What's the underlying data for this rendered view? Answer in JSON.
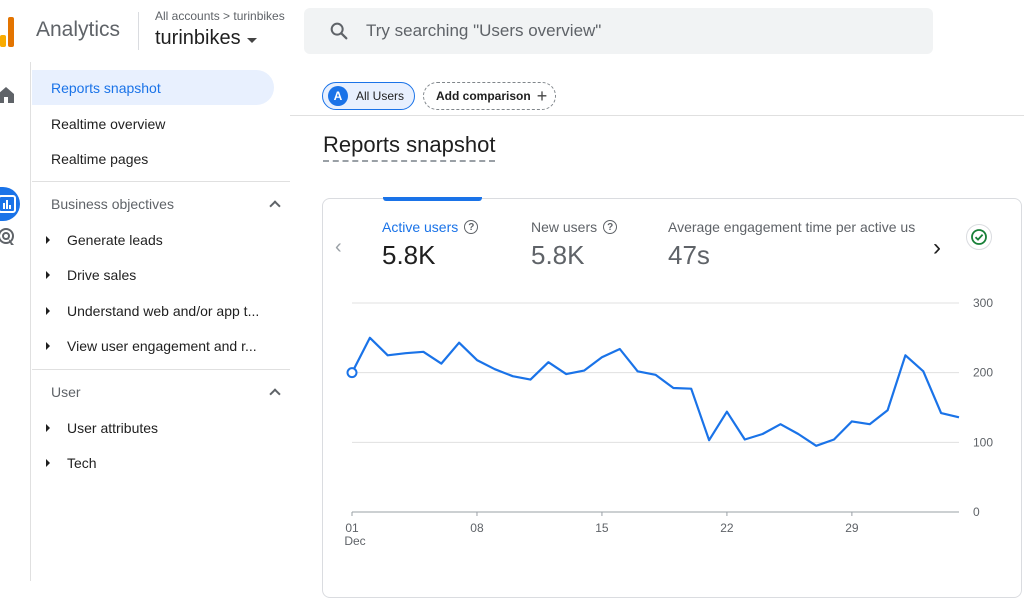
{
  "header": {
    "app_name": "Analytics",
    "breadcrumb": "All accounts > turinbikes",
    "account_name": "turinbikes",
    "search_placeholder": "Try searching \"Users overview\""
  },
  "colors": {
    "accent": "#1a73e8",
    "logo_orange": "#f9ab00",
    "logo_dark": "#e37400",
    "success": "#188038"
  },
  "rail": {
    "icons": [
      "home-icon",
      "reports-icon",
      "explore-icon",
      "advertising-icon"
    ]
  },
  "nav": {
    "top_items": [
      {
        "label": "Reports snapshot",
        "active": true
      },
      {
        "label": "Realtime overview",
        "active": false
      },
      {
        "label": "Realtime pages",
        "active": false
      }
    ],
    "business_objectives": {
      "label": "Business objectives",
      "items": [
        {
          "label": "Generate leads"
        },
        {
          "label": "Drive sales"
        },
        {
          "label": "Understand web and/or app t..."
        },
        {
          "label": "View user engagement and r..."
        }
      ]
    },
    "user": {
      "label": "User",
      "items": [
        {
          "label": "User attributes"
        },
        {
          "label": "Tech"
        }
      ]
    }
  },
  "main": {
    "chip_all_users": {
      "badge": "A",
      "label": "All Users"
    },
    "chip_add_comparison": "Add comparison",
    "page_title": "Reports snapshot",
    "metrics": [
      {
        "label": "Active users",
        "value": "5.8K",
        "active": true
      },
      {
        "label": "New users",
        "value": "5.8K",
        "active": false
      },
      {
        "label": "Average engagement time per active us",
        "value": "47s",
        "active": false
      }
    ]
  },
  "chart_data": {
    "type": "line",
    "series": [
      {
        "name": "Active users",
        "values": [
          200,
          250,
          225,
          228,
          230,
          213,
          243,
          218,
          205,
          195,
          190,
          215,
          198,
          203,
          222,
          234,
          202,
          197,
          178,
          177,
          103,
          144,
          104,
          112,
          126,
          112,
          95,
          104,
          130,
          126,
          146,
          225,
          202,
          142,
          136
        ]
      }
    ],
    "x_start_label": "01",
    "x_tick_labels": [
      "01",
      "08",
      "15",
      "22",
      "29"
    ],
    "x_tick_index": [
      0,
      7,
      14,
      21,
      28
    ],
    "x_month_label": "Dec",
    "y_ticks": [
      0,
      100,
      200,
      300
    ],
    "ylim": [
      0,
      300
    ],
    "grid": true,
    "y_axis_side": "right"
  }
}
